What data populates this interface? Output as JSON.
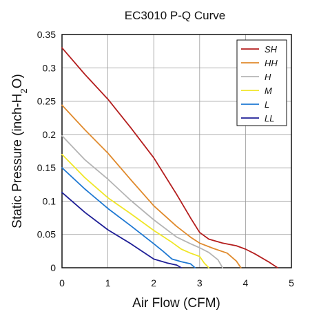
{
  "chart_data": {
    "type": "line",
    "title": "EC3010 P-Q Curve",
    "xlabel": "Air Flow (CFM)",
    "ylabel": "Static Pressure (inch-H2O)",
    "xlim": [
      0,
      5
    ],
    "ylim": [
      0,
      0.35
    ],
    "xticks": [
      "0",
      "1",
      "2",
      "3",
      "4",
      "5"
    ],
    "yticks": [
      "0",
      "0.05",
      "0.1",
      "0.15",
      "0.2",
      "0.25",
      "0.3",
      "0.35"
    ],
    "grid": true,
    "legend_position": "top-right",
    "series": [
      {
        "name": "SH",
        "color": "#b41e1e",
        "x": [
          0,
          0.5,
          1.0,
          1.5,
          2.0,
          2.5,
          2.8,
          3.0,
          3.2,
          3.5,
          3.8,
          4.0,
          4.2,
          4.5,
          4.7
        ],
        "y": [
          0.33,
          0.29,
          0.253,
          0.21,
          0.165,
          0.11,
          0.075,
          0.053,
          0.043,
          0.037,
          0.033,
          0.028,
          0.021,
          0.009,
          0.0
        ]
      },
      {
        "name": "HH",
        "color": "#e08a2c",
        "x": [
          0,
          0.5,
          1.0,
          1.5,
          2.0,
          2.5,
          2.8,
          3.0,
          3.3,
          3.6,
          3.8,
          3.9
        ],
        "y": [
          0.244,
          0.207,
          0.172,
          0.132,
          0.093,
          0.062,
          0.046,
          0.037,
          0.029,
          0.022,
          0.01,
          0.0
        ]
      },
      {
        "name": "H",
        "color": "#b4b4b4",
        "x": [
          0,
          0.5,
          1.0,
          1.5,
          2.0,
          2.5,
          2.8,
          3.0,
          3.2,
          3.4,
          3.5
        ],
        "y": [
          0.198,
          0.162,
          0.133,
          0.101,
          0.072,
          0.046,
          0.036,
          0.03,
          0.023,
          0.012,
          0.0
        ]
      },
      {
        "name": "M",
        "color": "#f0e628",
        "x": [
          0,
          0.5,
          1.0,
          1.5,
          2.0,
          2.4,
          2.6,
          2.8,
          3.0,
          3.1,
          3.2
        ],
        "y": [
          0.17,
          0.135,
          0.105,
          0.081,
          0.056,
          0.038,
          0.028,
          0.022,
          0.017,
          0.007,
          0.0
        ]
      },
      {
        "name": "L",
        "color": "#1e78d2",
        "x": [
          0,
          0.5,
          1.0,
          1.5,
          2.0,
          2.2,
          2.4,
          2.6,
          2.8,
          2.9
        ],
        "y": [
          0.15,
          0.118,
          0.089,
          0.063,
          0.036,
          0.025,
          0.013,
          0.009,
          0.006,
          0.0
        ]
      },
      {
        "name": "LL",
        "color": "#1e1e96",
        "x": [
          0,
          0.5,
          1.0,
          1.5,
          2.0,
          2.3,
          2.5,
          2.6
        ],
        "y": [
          0.113,
          0.083,
          0.057,
          0.036,
          0.013,
          0.007,
          0.004,
          0.0
        ]
      }
    ]
  }
}
